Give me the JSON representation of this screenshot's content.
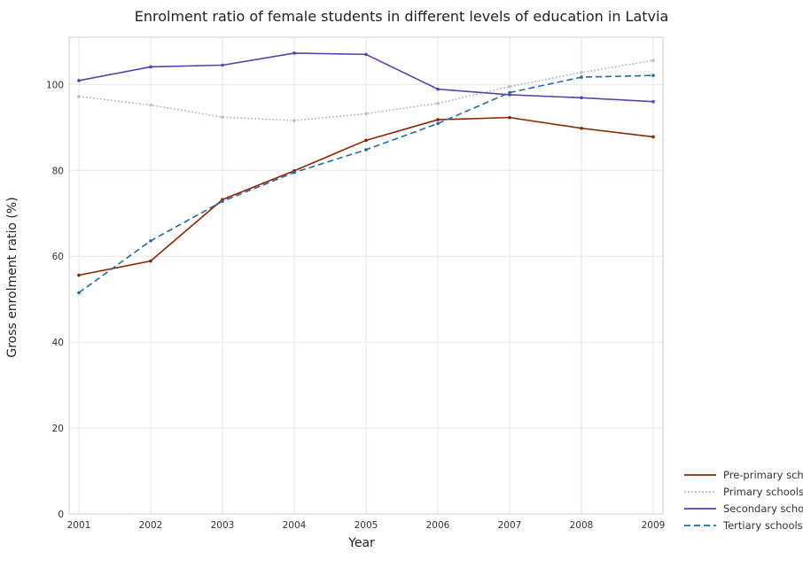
{
  "chart_data": {
    "type": "line",
    "title": "Enrolment ratio of female students in different levels of education in Latvia",
    "xlabel": "Year",
    "ylabel": "Gross enrolment ratio (%)",
    "ylim": [
      0,
      111
    ],
    "yticks": [
      0,
      20,
      40,
      60,
      80,
      100
    ],
    "grid": true,
    "legend_position": "bottom-right",
    "categories": [
      "2001",
      "2002",
      "2003",
      "2004",
      "2005",
      "2006",
      "2007",
      "2008",
      "2009"
    ],
    "series": [
      {
        "name": "Pre-primary schools",
        "color": "#8b2500",
        "dash": "solid",
        "values": [
          55.6,
          58.9,
          73.2,
          79.9,
          87.0,
          91.8,
          92.3,
          89.8,
          87.8
        ]
      },
      {
        "name": "Primary schools",
        "color": "#bdbdbd",
        "dash": "dotted",
        "values": [
          97.2,
          95.2,
          92.4,
          91.6,
          93.2,
          95.6,
          99.5,
          102.8,
          105.6
        ]
      },
      {
        "name": "Secondary schools",
        "color": "#5e3fb0",
        "dash": "solid",
        "values": [
          100.9,
          104.1,
          104.5,
          107.3,
          107.0,
          98.9,
          97.6,
          96.9,
          96.0
        ]
      },
      {
        "name": "Tertiary schools",
        "color": "#236ba2",
        "dash": "dashed",
        "values": [
          51.5,
          63.6,
          72.8,
          79.5,
          84.8,
          90.9,
          98.1,
          101.7,
          102.1
        ]
      }
    ]
  }
}
